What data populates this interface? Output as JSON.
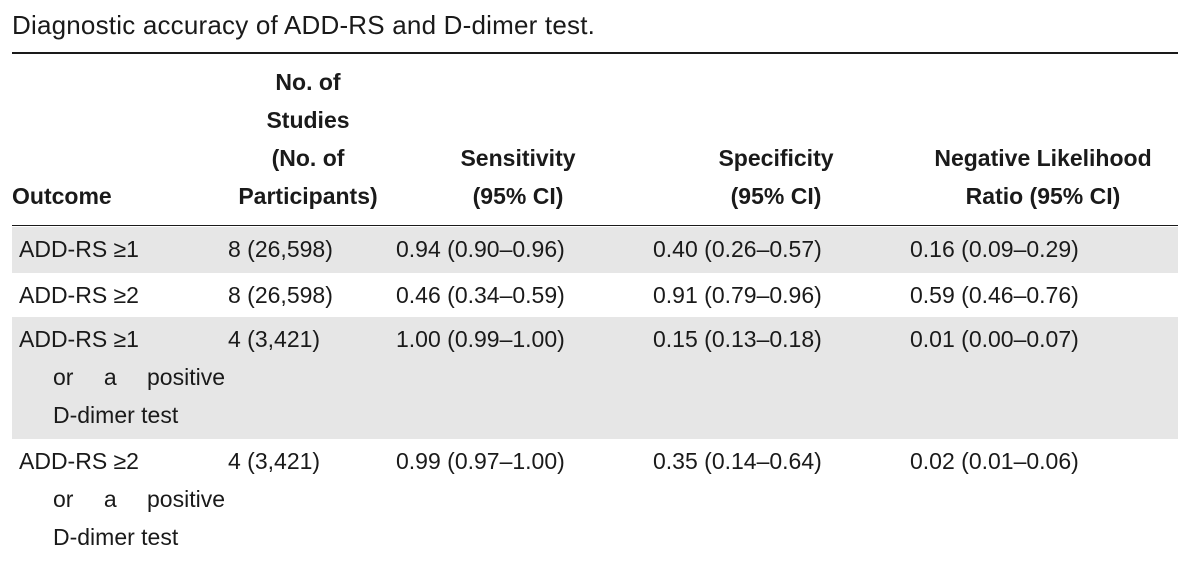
{
  "caption": "Diagnostic accuracy of ADD-RS and D-dimer test.",
  "table": {
    "headers": {
      "outcome": "Outcome",
      "studies": "No. of\nStudies\n(No. of\nParticipants)",
      "sensitivity": "Sensitivity\n(95% CI)",
      "specificity": "Specificity\n(95% CI)",
      "nlr": "Negative Likelihood\nRatio (95% CI)"
    },
    "rows": [
      {
        "outcome": "ADD-RS ≥1",
        "outcome_extra_1": "",
        "outcome_extra_2": "",
        "studies": "8 (26,598)",
        "sensitivity": "0.94 (0.90–0.96)",
        "specificity": "0.40 (0.26–0.57)",
        "nlr": "0.16 (0.09–0.29)"
      },
      {
        "outcome": "ADD-RS ≥2",
        "outcome_extra_1": "",
        "outcome_extra_2": "",
        "studies": "8 (26,598)",
        "sensitivity": "0.46 (0.34–0.59)",
        "specificity": "0.91 (0.79–0.96)",
        "nlr": "0.59 (0.46–0.76)"
      },
      {
        "outcome": "ADD-RS ≥1",
        "outcome_extra_1": "or a positive",
        "outcome_extra_2": "D-dimer test",
        "studies": "4 (3,421)",
        "sensitivity": "1.00 (0.99–1.00)",
        "specificity": "0.15 (0.13–0.18)",
        "nlr": "0.01 (0.00–0.07)"
      },
      {
        "outcome": "ADD-RS ≥2",
        "outcome_extra_1": "or a positive",
        "outcome_extra_2": "D-dimer test",
        "studies": "4 (3,421)",
        "sensitivity": "0.99 (0.97–1.00)",
        "specificity": "0.35 (0.14–0.64)",
        "nlr": "0.02 (0.01–0.06)"
      }
    ]
  }
}
